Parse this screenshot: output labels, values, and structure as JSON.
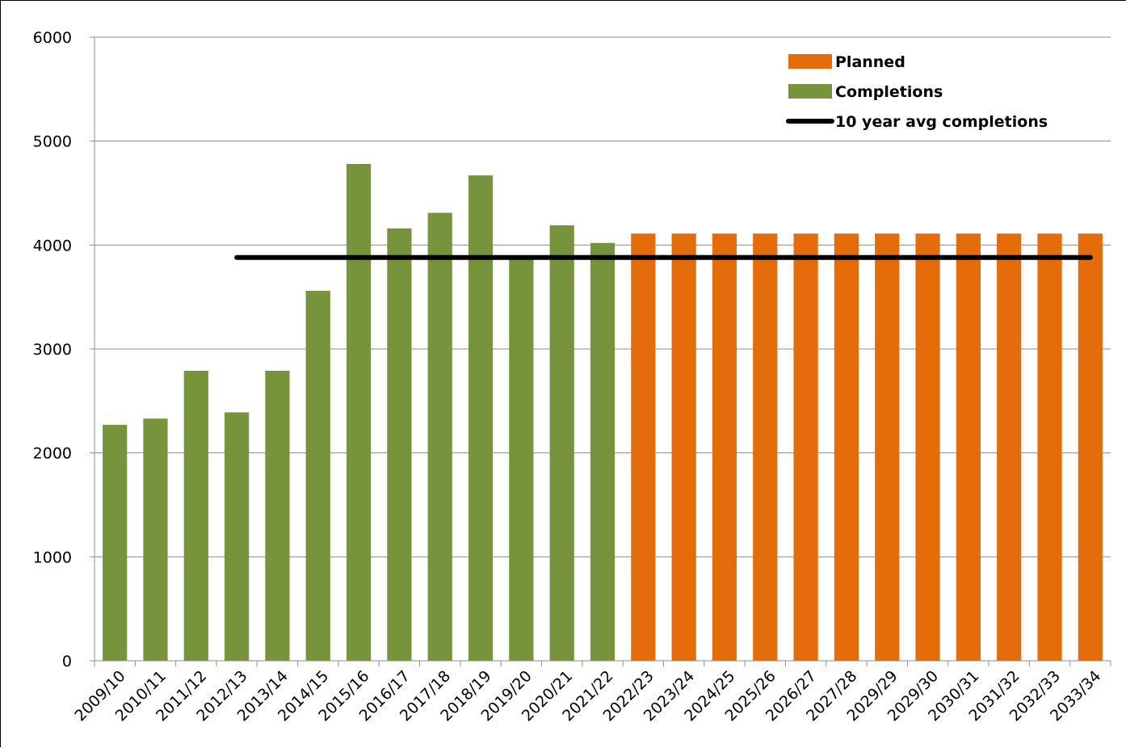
{
  "chart_data": {
    "type": "bar",
    "title": "",
    "xlabel": "",
    "ylabel": "",
    "ylim": [
      0,
      6000
    ],
    "yticks": [
      0,
      1000,
      2000,
      3000,
      4000,
      5000,
      6000
    ],
    "grid": "horizontal",
    "legend_position": "top-right",
    "categories": [
      "2009/10",
      "2010/11",
      "2011/12",
      "2012/13",
      "2013/14",
      "2014/15",
      "2015/16",
      "2016/17",
      "2017/18",
      "2018/19",
      "2019/20",
      "2020/21",
      "2021/22",
      "2022/23",
      "2023/24",
      "2024/25",
      "2025/26",
      "2026/27",
      "2027/28",
      "2029/29",
      "2029/30",
      "2030/31",
      "2031/32",
      "2032/33",
      "2033/34"
    ],
    "series": [
      {
        "name": "Planned",
        "type": "bar",
        "color": "#E46C0A",
        "values": [
          null,
          null,
          null,
          null,
          null,
          null,
          null,
          null,
          null,
          null,
          null,
          null,
          null,
          4110,
          4110,
          4110,
          4110,
          4110,
          4110,
          4110,
          4110,
          4110,
          4110,
          4110,
          4110
        ]
      },
      {
        "name": "Completions",
        "type": "bar",
        "color": "#77933C",
        "values": [
          2270,
          2330,
          2790,
          2390,
          2790,
          3560,
          4780,
          4160,
          4310,
          4670,
          3870,
          4190,
          4020,
          null,
          null,
          null,
          null,
          null,
          null,
          null,
          null,
          null,
          null,
          null,
          null
        ]
      },
      {
        "name": "10 year avg completions",
        "type": "line",
        "color": "#000000",
        "value": 3880,
        "x_start": "2012/13",
        "x_end": "2033/34"
      }
    ]
  }
}
